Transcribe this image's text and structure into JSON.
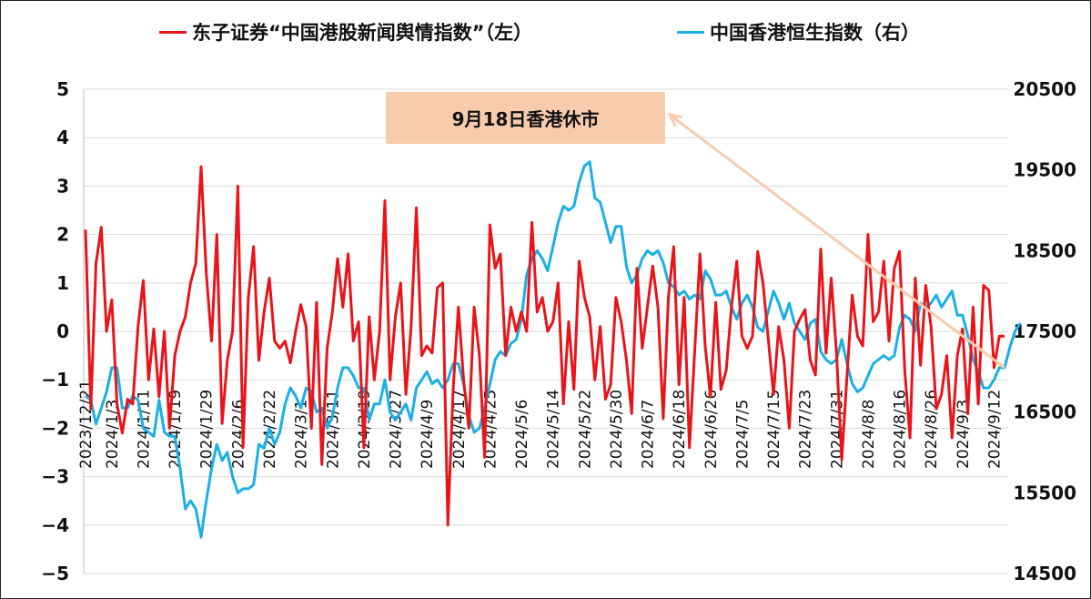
{
  "chart_data": {
    "type": "line",
    "title": "",
    "colors": {
      "sentiment": "#E8141A",
      "hsi": "#1AAFE6",
      "annotation_box": "#F8CBAD",
      "annotation_arrow": "#F8CBAD"
    },
    "legend_position": "top",
    "grid": true,
    "y_left": {
      "ylim": [
        -5,
        5
      ],
      "ticks": [
        "5",
        "4",
        "3",
        "2",
        "1",
        "0",
        "−1",
        "−2",
        "−3",
        "−4",
        "−5"
      ]
    },
    "y_right": {
      "ylim": [
        14500,
        20500
      ],
      "ticks": [
        "20500",
        "19500",
        "18500",
        "17500",
        "16500",
        "15500",
        "14500"
      ]
    },
    "x_tick_labels": [
      "2023/12/21",
      "2024/1/3",
      "2024/1/11",
      "2024/1/19",
      "2024/1/29",
      "2024/2/6",
      "2024/2/22",
      "2024/3/1",
      "2024/3/11",
      "2024/3/19",
      "2024/3/27",
      "2024/4/9",
      "2024/4/17",
      "2024/4/25",
      "2024/5/6",
      "2024/5/14",
      "2024/5/22",
      "2024/5/30",
      "2024/6/7",
      "2024/6/18",
      "2024/6/26",
      "2024/7/5",
      "2024/7/15",
      "2024/7/23",
      "2024/7/31",
      "2024/8/8",
      "2024/8/16",
      "2024/8/26",
      "2024/9/3",
      "2024/9/12"
    ],
    "x_tick_index": [
      0,
      5,
      11,
      17,
      23,
      29,
      35,
      41,
      47,
      53,
      59,
      65,
      71,
      77,
      83,
      89,
      95,
      101,
      107,
      113,
      119,
      125,
      131,
      137,
      143,
      149,
      155,
      161,
      167,
      173
    ],
    "series": [
      {
        "name": "东子证券“中国港股新闻舆情指数”（左）",
        "axis": "left",
        "values": [
          2.1,
          -1.6,
          1.4,
          2.15,
          0.0,
          0.65,
          -1.5,
          -2.1,
          -1.4,
          -1.5,
          0.1,
          1.05,
          -1.0,
          0.05,
          -1.35,
          0.0,
          -2.0,
          -0.5,
          0.0,
          0.3,
          1.0,
          1.4,
          3.4,
          1.2,
          -0.2,
          2.0,
          -1.9,
          -0.6,
          0.0,
          3.0,
          -2.4,
          0.7,
          1.75,
          -0.6,
          0.4,
          1.1,
          -0.2,
          -0.35,
          -0.2,
          -0.65,
          0.0,
          0.55,
          0.1,
          -2.0,
          0.6,
          -2.75,
          -0.35,
          0.4,
          1.5,
          0.5,
          1.6,
          -0.2,
          0.2,
          -2.4,
          0.3,
          -1.0,
          0.0,
          2.7,
          -1.0,
          0.3,
          1.0,
          -1.3,
          0.1,
          2.55,
          -0.5,
          -0.3,
          -0.45,
          0.9,
          1.0,
          -4.0,
          -1.2,
          0.5,
          -1.0,
          -2.0,
          0.5,
          -0.5,
          -2.6,
          2.2,
          1.3,
          1.6,
          -0.5,
          0.5,
          0.0,
          0.4,
          0.0,
          2.25,
          0.4,
          0.7,
          0.0,
          0.2,
          1.0,
          -1.5,
          0.2,
          -1.2,
          1.45,
          0.7,
          0.3,
          -1.0,
          0.1,
          -1.4,
          -1.1,
          0.7,
          0.2,
          -0.6,
          -1.7,
          1.3,
          -0.35,
          0.5,
          1.35,
          0.5,
          -1.8,
          0.7,
          1.75,
          -1.1,
          0.7,
          -2.4,
          -0.4,
          1.6,
          -0.3,
          -1.35,
          0.6,
          -1.2,
          -0.8,
          0.5,
          1.45,
          -0.1,
          -0.35,
          -0.1,
          1.65,
          1.0,
          -0.15,
          -1.3,
          0.1,
          -0.6,
          -2.0,
          0.0,
          0.25,
          0.45,
          -0.6,
          -0.9,
          1.7,
          -0.45,
          1.1,
          -0.45,
          -2.65,
          -0.9,
          0.75,
          -0.1,
          -0.3,
          2.0,
          0.2,
          0.4,
          1.45,
          -0.2,
          1.3,
          1.65,
          -0.8,
          -2.2,
          1.1,
          -0.7,
          0.95,
          0.1,
          -1.6,
          -1.3,
          -0.5,
          -2.2,
          -0.5,
          0.05,
          -1.7,
          0.5,
          -1.5,
          0.95,
          0.85,
          -0.75,
          -0.1,
          -0.1
        ]
      },
      {
        "name": "中国香港恒生指数（右）",
        "axis": "right",
        "values": [
          16700,
          16650,
          16350,
          16550,
          16750,
          17050,
          17050,
          16550,
          16550,
          16700,
          16650,
          16300,
          16250,
          16200,
          16650,
          16250,
          16200,
          16200,
          15800,
          15300,
          15400,
          15300,
          14950,
          15400,
          15800,
          16100,
          15900,
          16000,
          15700,
          15500,
          15550,
          15550,
          15600,
          16100,
          16050,
          16300,
          16100,
          16250,
          16600,
          16800,
          16700,
          16550,
          16800,
          16750,
          16500,
          16550,
          16300,
          16450,
          16800,
          17050,
          17050,
          16950,
          16800,
          16800,
          16400,
          16600,
          16600,
          16900,
          16500,
          16400,
          16500,
          16600,
          16400,
          16800,
          16900,
          17000,
          16850,
          16900,
          16800,
          16900,
          17100,
          17100,
          16850,
          16450,
          16250,
          16300,
          16550,
          16850,
          17150,
          17250,
          17200,
          17350,
          17400,
          17650,
          18200,
          18400,
          18500,
          18400,
          18250,
          18550,
          18850,
          19050,
          19000,
          19050,
          19350,
          19550,
          19600,
          19150,
          19100,
          18850,
          18600,
          18800,
          18800,
          18300,
          18100,
          18200,
          18400,
          18500,
          18450,
          18500,
          18350,
          18100,
          18050,
          17950,
          18000,
          17900,
          17950,
          17900,
          18250,
          18150,
          17950,
          17950,
          18000,
          17800,
          17650,
          17850,
          17950,
          17800,
          17550,
          17500,
          17750,
          18000,
          17850,
          17650,
          17850,
          17600,
          17500,
          17400,
          17600,
          17650,
          17250,
          17150,
          17100,
          17150,
          17400,
          17100,
          16850,
          16750,
          16800,
          16950,
          17100,
          17150,
          17200,
          17150,
          17200,
          17550,
          17700,
          17650,
          17500,
          17850,
          17800,
          17850,
          17950,
          17800,
          17900,
          18000,
          17700,
          17700,
          17450,
          17150,
          17000,
          16800,
          16800,
          16900,
          17050,
          17050,
          17300,
          17500,
          17600
        ]
      }
    ],
    "annotations": [
      {
        "text": "9月18日香港休市",
        "points_to_index": 175
      }
    ]
  },
  "legend": {
    "item1_label": "东子证券“中国港股新闻舆情指数”（左）",
    "item2_label": "中国香港恒生指数（右）"
  }
}
